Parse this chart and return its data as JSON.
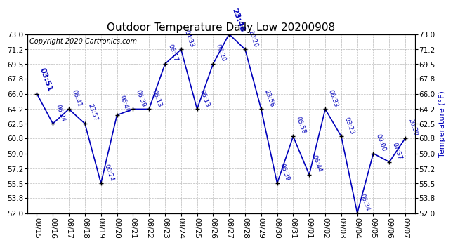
{
  "title": "Outdoor Temperature Daily Low 20200908",
  "copyright_text": "Copyright 2020 Cartronics.com",
  "ylabel": "Temperature (°F)",
  "background_color": "#ffffff",
  "line_color": "#0000bb",
  "text_color": "#0000bb",
  "grid_color": "#bbbbbb",
  "dates": [
    "08/15",
    "08/16",
    "08/17",
    "08/18",
    "08/19",
    "08/20",
    "08/21",
    "08/22",
    "08/23",
    "08/24",
    "08/25",
    "08/26",
    "08/27",
    "08/28",
    "08/29",
    "08/30",
    "08/31",
    "09/01",
    "09/02",
    "09/03",
    "09/04",
    "09/05",
    "09/06",
    "09/07"
  ],
  "temperatures": [
    66.0,
    62.5,
    64.2,
    62.5,
    55.5,
    63.5,
    64.2,
    64.2,
    69.5,
    71.2,
    64.2,
    69.5,
    73.0,
    71.2,
    64.2,
    55.5,
    61.0,
    56.5,
    64.2,
    61.0,
    52.0,
    59.0,
    58.0,
    60.8
  ],
  "times": [
    "03:51",
    "06:24",
    "06:41",
    "23:57",
    "06:24",
    "06:40",
    "06:39",
    "06:13",
    "06:17",
    "04:33",
    "06:13",
    "06:20",
    "23:48",
    "20:20",
    "23:56",
    "06:39",
    "05:58",
    "06:44",
    "06:33",
    "03:23",
    "06:34",
    "00:00",
    "07:37",
    "20:30"
  ],
  "highlight_indices": [
    0,
    12
  ],
  "ylim_min": 52.0,
  "ylim_max": 73.0,
  "yticks": [
    52.0,
    53.8,
    55.5,
    57.2,
    59.0,
    60.8,
    62.5,
    64.2,
    66.0,
    67.8,
    69.5,
    71.2,
    73.0
  ],
  "title_fontsize": 11,
  "tick_fontsize": 7.5,
  "copyright_fontsize": 7,
  "ylabel_fontsize": 8,
  "annotation_fontsize": 6.5,
  "highlight_fontsize": 8,
  "marker_size": 5,
  "line_width": 1.2
}
